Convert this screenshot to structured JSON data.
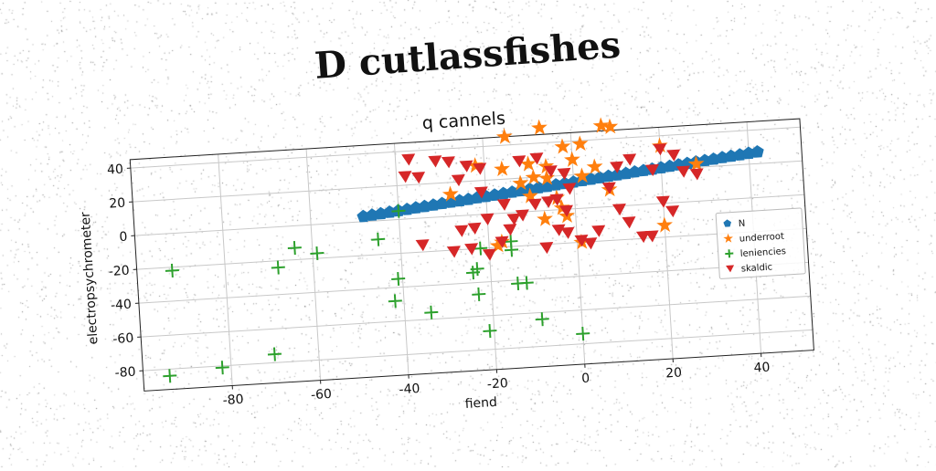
{
  "page_title": "D cutlassfishes",
  "chart_data": {
    "type": "scatter",
    "title": "q cannels",
    "xlabel": "fiend",
    "ylabel": "electropsychrometer",
    "xlim": [
      -100,
      52
    ],
    "ylim": [
      -92,
      45
    ],
    "xticks": [
      -80,
      -60,
      -40,
      -20,
      0,
      20,
      40
    ],
    "yticks": [
      40,
      20,
      0,
      -20,
      -40,
      -60,
      -80
    ],
    "grid": true,
    "legend_position": "right",
    "series": [
      {
        "name": "N",
        "marker": "pentagon",
        "color": "#1f77b4",
        "points": [
          [
            -48,
            3
          ],
          [
            -46,
            3.5
          ],
          [
            -44,
            4
          ],
          [
            -42,
            4.6
          ],
          [
            -40,
            5.1
          ],
          [
            -38,
            5.6
          ],
          [
            -36,
            6.2
          ],
          [
            -34,
            6.7
          ],
          [
            -32,
            7.2
          ],
          [
            -30,
            7.8
          ],
          [
            -28,
            8.3
          ],
          [
            -26,
            8.8
          ],
          [
            -24,
            9.3
          ],
          [
            -22,
            9.9
          ],
          [
            -20,
            10.4
          ],
          [
            -18,
            10.9
          ],
          [
            -16,
            11.5
          ],
          [
            -14,
            12
          ],
          [
            -12,
            12.5
          ],
          [
            -10,
            13.1
          ],
          [
            -8,
            13.6
          ],
          [
            -6,
            14.1
          ],
          [
            -4,
            14.7
          ],
          [
            -2,
            15.2
          ],
          [
            0,
            15.7
          ],
          [
            2,
            16.3
          ],
          [
            4,
            16.8
          ],
          [
            6,
            17.3
          ],
          [
            8,
            17.9
          ],
          [
            10,
            18.4
          ],
          [
            12,
            18.9
          ],
          [
            14,
            19.5
          ],
          [
            16,
            20
          ],
          [
            18,
            20.5
          ],
          [
            20,
            21
          ],
          [
            22,
            21.6
          ],
          [
            24,
            22.1
          ],
          [
            26,
            22.6
          ],
          [
            28,
            23.2
          ],
          [
            30,
            23.7
          ],
          [
            32,
            24.2
          ],
          [
            34,
            24.8
          ],
          [
            36,
            25.3
          ],
          [
            38,
            25.8
          ],
          [
            40,
            26.4
          ],
          [
            42,
            26.9
          ]
        ]
      },
      {
        "name": "underroot",
        "marker": "star",
        "color": "#ff7f0e",
        "points": [
          [
            -15,
            45
          ],
          [
            -7,
            49
          ],
          [
            7,
            48
          ],
          [
            9,
            47
          ],
          [
            -2,
            37
          ],
          [
            2,
            38
          ],
          [
            -22,
            29
          ],
          [
            -16,
            26
          ],
          [
            -10,
            28
          ],
          [
            -6,
            26
          ],
          [
            0,
            29
          ],
          [
            5,
            24
          ],
          [
            -28,
            13
          ],
          [
            -12,
            17
          ],
          [
            -9,
            20
          ],
          [
            -6,
            19
          ],
          [
            2,
            19
          ],
          [
            -4,
            7
          ],
          [
            -10,
            9
          ],
          [
            -3,
            1
          ],
          [
            -2,
            -4
          ],
          [
            -7,
            -5
          ],
          [
            20,
            34
          ],
          [
            28,
            22
          ],
          [
            -17,
            -17
          ],
          [
            -18,
            -19
          ],
          [
            1,
            -20
          ],
          [
            20,
            -13
          ],
          [
            8,
            10
          ]
        ]
      },
      {
        "name": "leniencies",
        "marker": "plus",
        "color": "#2ca02c",
        "points": [
          [
            -92,
            -22
          ],
          [
            -82,
            -81
          ],
          [
            -70,
            -75
          ],
          [
            -64,
            -13
          ],
          [
            -68,
            -24
          ],
          [
            -59,
            -17
          ],
          [
            -94,
            -84
          ],
          [
            -45,
            -11
          ],
          [
            -40,
            5
          ],
          [
            -41,
            -35
          ],
          [
            -42,
            -48
          ],
          [
            -34,
            -56
          ],
          [
            -24,
            -34
          ],
          [
            -23,
            -32
          ],
          [
            -23,
            -47
          ],
          [
            -21,
            -69
          ],
          [
            -22,
            -20
          ],
          [
            -15,
            -22
          ],
          [
            -14,
            -42
          ],
          [
            -12,
            -42
          ],
          [
            -9,
            -64
          ],
          [
            0,
            -74
          ],
          [
            -15,
            -17
          ]
        ]
      },
      {
        "name": "skaldic",
        "marker": "triangle_down",
        "color": "#d62728",
        "points": [
          [
            -37,
            35
          ],
          [
            -38,
            25
          ],
          [
            -35,
            24
          ],
          [
            -31,
            33
          ],
          [
            -28,
            32
          ],
          [
            -26,
            21
          ],
          [
            -24,
            29
          ],
          [
            -21,
            27
          ],
          [
            -21,
            13
          ],
          [
            -20,
            -3
          ],
          [
            -23,
            -8
          ],
          [
            -24,
            -20
          ],
          [
            -26,
            -9
          ],
          [
            -28,
            -21
          ],
          [
            -35,
            -16
          ],
          [
            -16,
            5
          ],
          [
            -12,
            30
          ],
          [
            -8,
            31
          ],
          [
            -5,
            23
          ],
          [
            -2,
            21
          ],
          [
            -1,
            12
          ],
          [
            -4,
            6
          ],
          [
            -6,
            5
          ],
          [
            -9,
            4
          ],
          [
            -12,
            -2
          ],
          [
            -14,
            -4
          ],
          [
            -15,
            -10
          ],
          [
            -17,
            -17
          ],
          [
            -20,
            -24
          ],
          [
            -7,
            -22
          ],
          [
            -4,
            -12
          ],
          [
            -2,
            -14
          ],
          [
            1,
            -19
          ],
          [
            3,
            -21
          ],
          [
            5,
            -14
          ],
          [
            8,
            11
          ],
          [
            10,
            -2
          ],
          [
            12,
            -10
          ],
          [
            15,
            -19
          ],
          [
            17,
            -19
          ],
          [
            13,
            27
          ],
          [
            18,
            20
          ],
          [
            20,
            32
          ],
          [
            23,
            28
          ],
          [
            25,
            18
          ],
          [
            28,
            16
          ],
          [
            20,
            1
          ],
          [
            22,
            -5
          ],
          [
            10,
            23
          ],
          [
            -2,
            -1
          ]
        ]
      }
    ]
  }
}
